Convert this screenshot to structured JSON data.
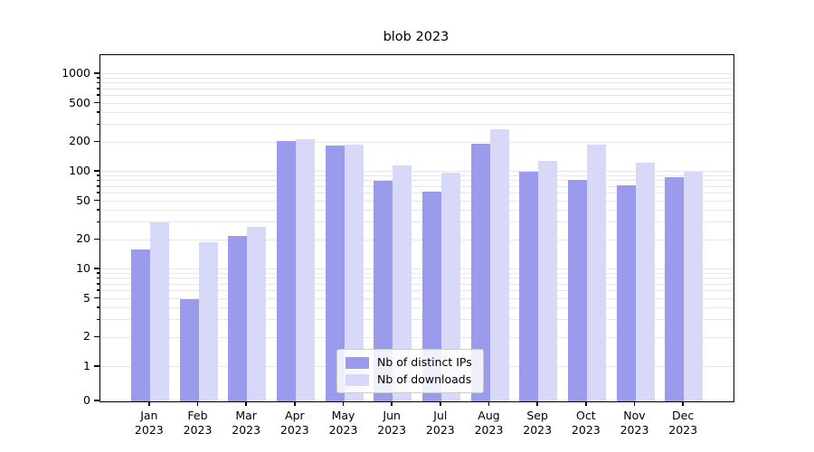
{
  "title": "blob 2023",
  "chart_data": {
    "type": "bar",
    "title": "blob 2023",
    "categories": [
      "Jan 2023",
      "Feb 2023",
      "Mar 2023",
      "Apr 2023",
      "May 2023",
      "Jun 2023",
      "Jul 2023",
      "Aug 2023",
      "Sep 2023",
      "Oct 2023",
      "Nov 2023",
      "Dec 2023"
    ],
    "series": [
      {
        "name": "Nb of distinct IPs",
        "color": "#9b9bee",
        "values": [
          16,
          5,
          22,
          205,
          185,
          80,
          63,
          195,
          100,
          83,
          73,
          88
        ]
      },
      {
        "name": "Nb of downloads",
        "color": "#d8d8f8",
        "values": [
          30,
          19,
          27,
          215,
          190,
          115,
          97,
          270,
          130,
          190,
          125,
          100
        ]
      }
    ],
    "xlabel": "",
    "ylabel": "",
    "yscale": "symlog",
    "yticks": [
      0,
      1,
      2,
      5,
      10,
      20,
      50,
      100,
      200,
      500,
      1000
    ],
    "ylim": [
      0,
      1500
    ],
    "grid": true,
    "legend_position": "lower center"
  },
  "colors": {
    "grid": "#e7e7e7",
    "axis": "#000000",
    "background": "#ffffff",
    "legend_border": "#cccccc"
  }
}
